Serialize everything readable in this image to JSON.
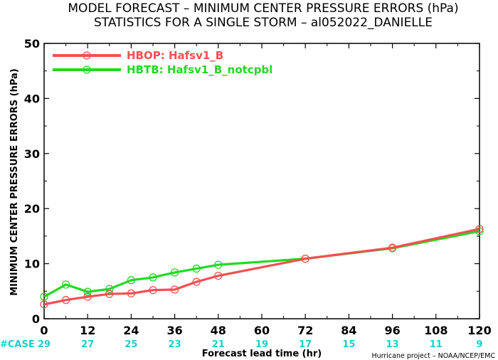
{
  "chart_data": {
    "type": "line",
    "title": "MODEL FORECAST – MINIMUM CENTER PRESSURE ERRORS (hPa)",
    "subtitle": "STATISTICS FOR A SINGLE STORM – al052022_DANIELLE",
    "xlabel": "Forecast lead time (hr)",
    "ylabel": "MINIMUM CENTER PRESSURE ERRORS (hPa)",
    "xlim": [
      0,
      120
    ],
    "ylim": [
      0,
      50
    ],
    "xticks": [
      0,
      12,
      24,
      36,
      48,
      60,
      72,
      84,
      96,
      108,
      120
    ],
    "yticks": [
      0,
      10,
      20,
      30,
      40,
      50
    ],
    "legend_position": "top-left",
    "series": [
      {
        "name": "HBOP: Hafsv1_B",
        "color": "#f25050",
        "x": [
          0,
          6,
          12,
          18,
          24,
          30,
          36,
          42,
          48,
          72,
          96,
          120
        ],
        "y": [
          2.6,
          3.4,
          4.0,
          4.5,
          4.6,
          5.2,
          5.3,
          6.7,
          7.8,
          10.9,
          12.9,
          16.3
        ]
      },
      {
        "name": "HBTB: Hafsv1_B_notcpbl",
        "color": "#22d922",
        "x": [
          0,
          6,
          12,
          18,
          24,
          30,
          36,
          42,
          48,
          72,
          96,
          120
        ],
        "y": [
          4.0,
          6.2,
          4.9,
          5.4,
          7.0,
          7.5,
          8.4,
          9.1,
          9.8,
          10.9,
          12.8,
          15.9
        ]
      }
    ],
    "case_counts": {
      "label": "#CASE",
      "color": "#22cccc",
      "x": [
        0,
        12,
        24,
        36,
        48,
        60,
        72,
        84,
        96,
        108,
        120
      ],
      "values": [
        "29",
        "27",
        "25",
        "23",
        "21",
        "19",
        "17",
        "15",
        "13",
        "11",
        "9"
      ]
    },
    "credit": "Hurricane project – NOAA/NCEP/EMC"
  }
}
